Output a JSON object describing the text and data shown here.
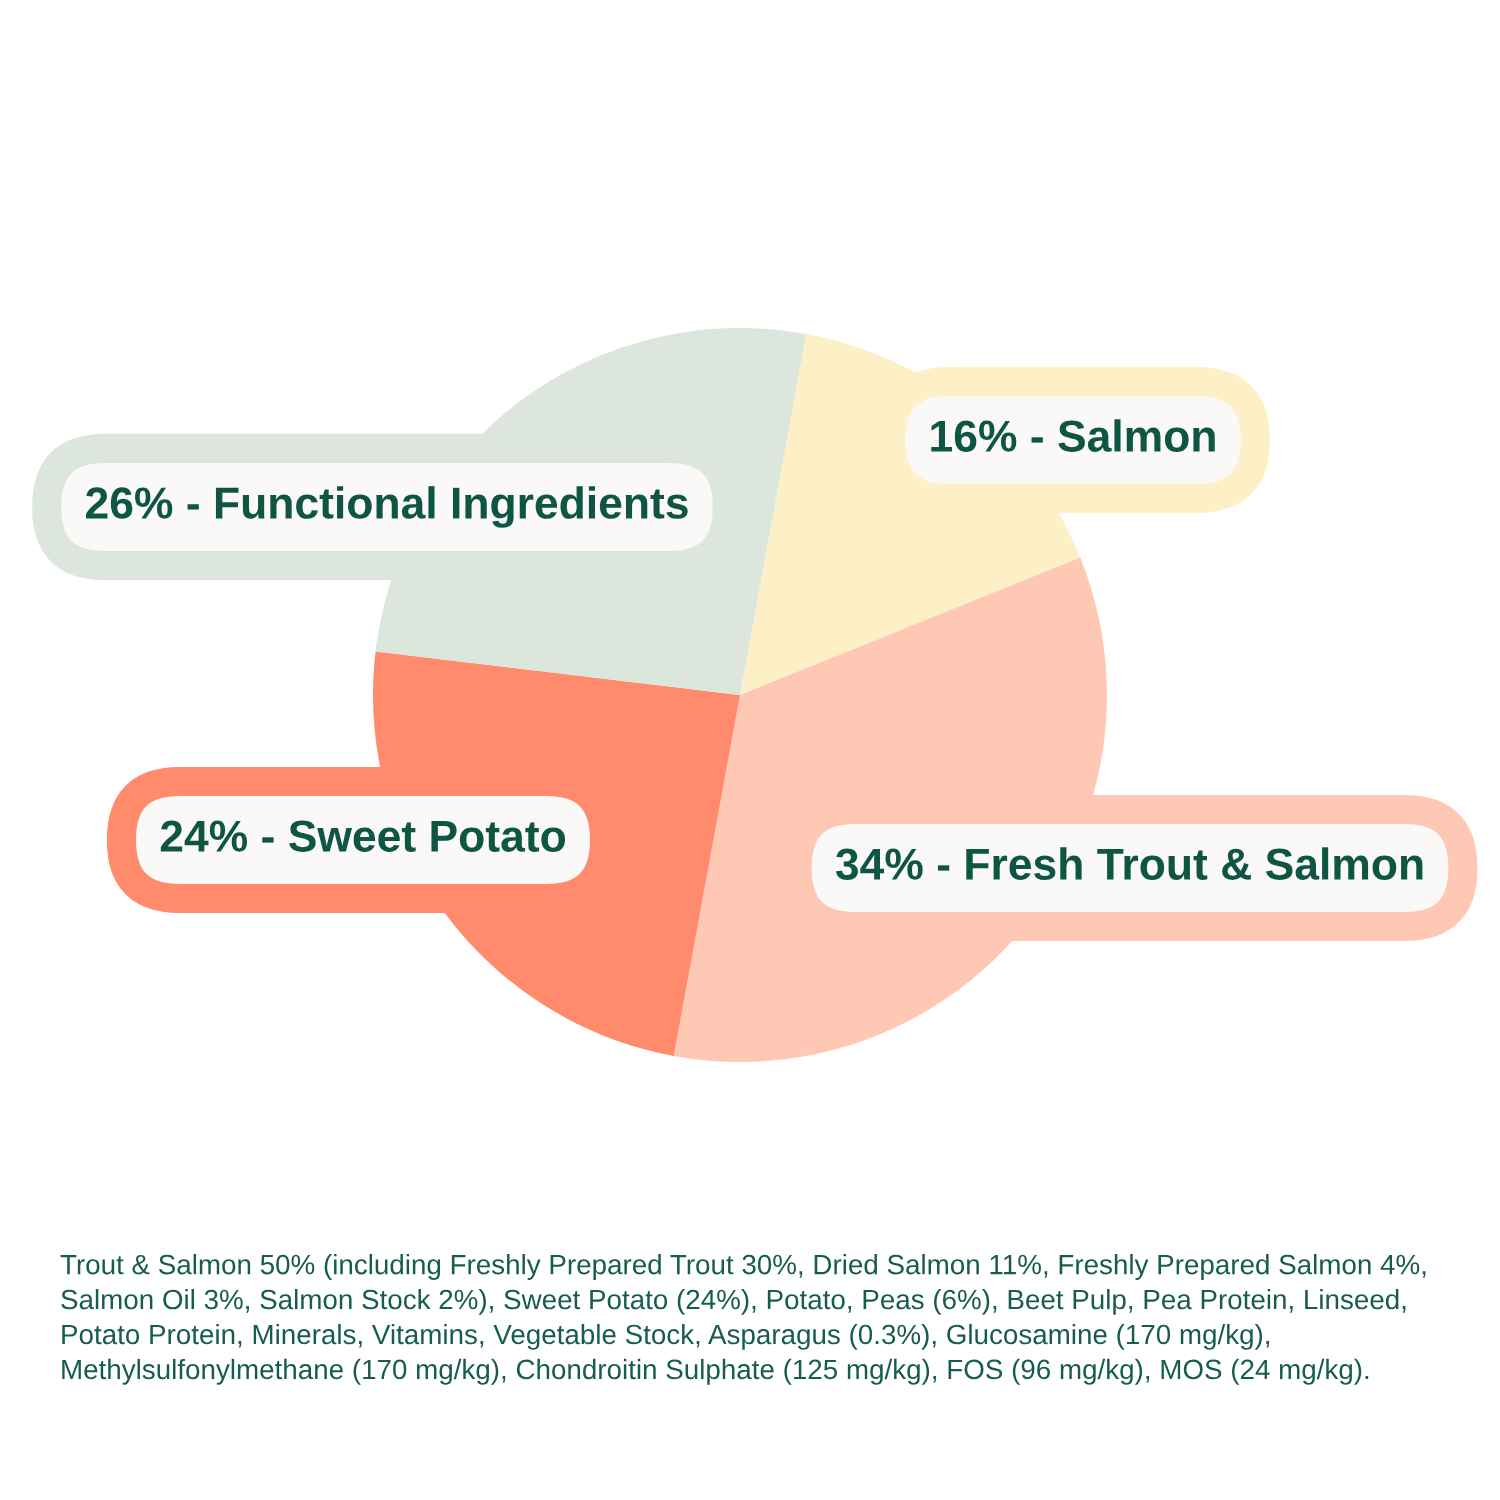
{
  "chart_data": {
    "type": "pie",
    "categories": [
      "16% - Salmon",
      "34% - Fresh Trout & Salmon",
      "24% - Sweet Potato",
      "26% - Functional Ingredients"
    ],
    "values": [
      16,
      34,
      24,
      26
    ],
    "colors": [
      "#fdf0c6",
      "#ffc8b4",
      "#ff8a6c",
      "#dce6dc"
    ],
    "annotations": [
      "Trout & Salmon 50% (including Freshly Prepared Trout 30%, Dried Salmon 11%, Freshly Prepared Salmon 4%, Salmon Oil 3%, Salmon Stock 2%), Sweet Potato (24%), Potato, Peas (6%), Beet Pulp, Pea Protein, Linseed, Potato Protein, Minerals, Vitamins, Vegetable Stock, Asparagus (0.3%), Glucosamine (170 mg/kg), Methylsulfonylmethane (170 mg/kg), Chondroitin Sulphate (125 mg/kg), FOS (96 mg/kg), MOS (24 mg/kg)."
    ]
  }
}
